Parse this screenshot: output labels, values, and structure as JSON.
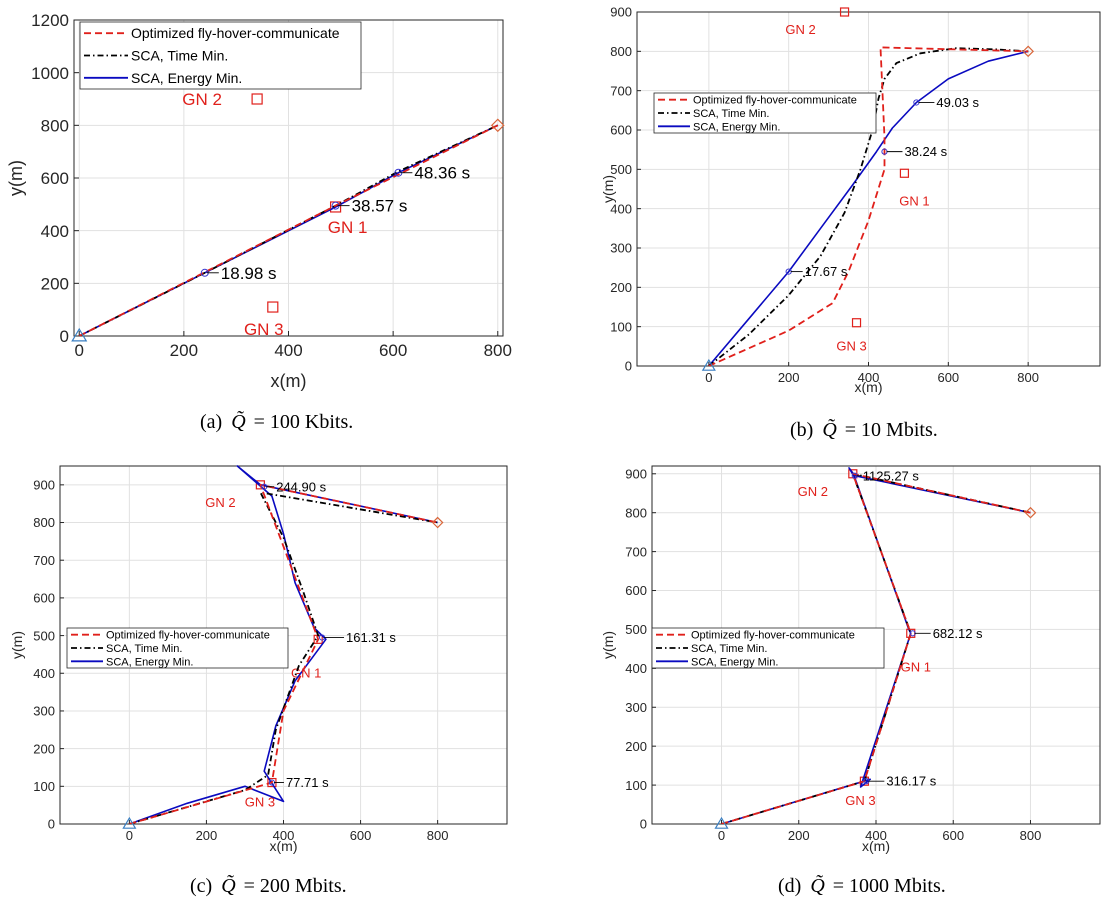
{
  "chart_data": [
    {
      "type": "line",
      "caption_prefix": "(a)",
      "caption_value": "= 100 Kbits.",
      "xlabel": "x(m)",
      "ylabel": "y(m)",
      "xlim": [
        -10,
        810
      ],
      "ylim": [
        0,
        1200
      ],
      "xticks": [
        0,
        200,
        400,
        600,
        800
      ],
      "yticks": [
        0,
        200,
        400,
        600,
        800,
        1000,
        1200
      ],
      "grid": true,
      "legend": {
        "placement": "top-left",
        "entries": [
          "Optimized fly-hover-communicate",
          "SCA, Time Min.",
          "SCA, Energy Min."
        ]
      },
      "series": [
        {
          "name": "Optimized fly-hover-communicate",
          "style": "dashed",
          "color": "#e0201b",
          "x": [
            0,
            490,
            800
          ],
          "y": [
            0,
            495,
            800
          ]
        },
        {
          "name": "SCA, Time Min.",
          "style": "dashdot",
          "color": "#000000",
          "x": [
            0,
            240,
            490,
            610,
            800
          ],
          "y": [
            0,
            240,
            495,
            625,
            800
          ]
        },
        {
          "name": "SCA, Energy Min.",
          "style": "solid",
          "color": "#0a0ac0",
          "x": [
            0,
            240,
            490,
            610,
            800
          ],
          "y": [
            0,
            240,
            490,
            620,
            800
          ]
        }
      ],
      "ground_nodes": [
        {
          "label": "GN 1",
          "x": 490,
          "y": 490
        },
        {
          "label": "GN 2",
          "x": 340,
          "y": 900
        },
        {
          "label": "GN 3",
          "x": 370,
          "y": 110
        }
      ],
      "start": {
        "x": 0,
        "y": 0
      },
      "end": {
        "x": 800,
        "y": 800
      },
      "annotations": [
        {
          "text": "18.98 s",
          "x": 240,
          "y": 240
        },
        {
          "text": "38.57 s",
          "x": 490,
          "y": 495
        },
        {
          "text": "48.36 s",
          "x": 610,
          "y": 620
        }
      ]
    },
    {
      "type": "line",
      "caption_prefix": "(b)",
      "caption_value": "= 10 Mbits.",
      "xlabel": "x(m)",
      "ylabel": "y(m)",
      "xlim": [
        -180,
        980
      ],
      "ylim": [
        0,
        900
      ],
      "xticks": [
        0,
        200,
        400,
        600,
        800
      ],
      "yticks": [
        0,
        100,
        200,
        300,
        400,
        500,
        600,
        700,
        800,
        900
      ],
      "grid": true,
      "legend": {
        "placement": "top-left",
        "entries": [
          "Optimized fly-hover-communicate",
          "SCA, Time Min.",
          "SCA, Energy Min."
        ]
      },
      "series": [
        {
          "name": "Optimized fly-hover-communicate",
          "style": "dashed",
          "color": "#e0201b",
          "x": [
            0,
            200,
            310,
            350,
            400,
            440,
            440,
            430,
            800
          ],
          "y": [
            0,
            90,
            160,
            240,
            370,
            500,
            580,
            810,
            800
          ]
        },
        {
          "name": "SCA, Time Min.",
          "style": "dashdot",
          "color": "#000000",
          "x": [
            0,
            100,
            200,
            280,
            340,
            380,
            410,
            425,
            440,
            470,
            530,
            620,
            720,
            800
          ],
          "y": [
            0,
            80,
            180,
            280,
            390,
            500,
            600,
            680,
            730,
            770,
            795,
            808,
            805,
            800
          ]
        },
        {
          "name": "SCA, Energy Min.",
          "style": "solid",
          "color": "#0a0ac0",
          "x": [
            0,
            100,
            200,
            280,
            360,
            420,
            460,
            520,
            600,
            700,
            800
          ],
          "y": [
            0,
            120,
            240,
            350,
            460,
            545,
            605,
            670,
            730,
            775,
            800
          ]
        }
      ],
      "ground_nodes": [
        {
          "label": "GN 1",
          "x": 490,
          "y": 490
        },
        {
          "label": "GN 2",
          "x": 340,
          "y": 900
        },
        {
          "label": "GN 3",
          "x": 370,
          "y": 110
        }
      ],
      "start": {
        "x": 0,
        "y": 0
      },
      "end": {
        "x": 800,
        "y": 800
      },
      "annotations": [
        {
          "text": "17.67 s",
          "x": 200,
          "y": 240
        },
        {
          "text": "38.24 s",
          "x": 440,
          "y": 545
        },
        {
          "text": "49.03 s",
          "x": 520,
          "y": 670
        }
      ]
    },
    {
      "type": "line",
      "caption_prefix": "(c)",
      "caption_value": "= 200 Mbits.",
      "xlabel": "x(m)",
      "ylabel": "y(m)",
      "xlim": [
        -180,
        980
      ],
      "ylim": [
        0,
        950
      ],
      "xticks": [
        0,
        200,
        400,
        600,
        800
      ],
      "yticks": [
        0,
        100,
        200,
        300,
        400,
        500,
        600,
        700,
        800,
        900
      ],
      "grid": true,
      "legend": {
        "placement": "middle-left",
        "entries": [
          "Optimized fly-hover-communicate",
          "SCA, Time Min.",
          "SCA, Energy Min."
        ]
      },
      "series": [
        {
          "name": "Optimized fly-hover-communicate",
          "style": "dashed",
          "color": "#e0201b",
          "x": [
            0,
            370,
            400,
            490,
            340,
            800
          ],
          "y": [
            0,
            110,
            300,
            490,
            900,
            800
          ]
        },
        {
          "name": "SCA, Time Min.",
          "style": "dashdot",
          "color": "#000000",
          "x": [
            0,
            150,
            300,
            360,
            380,
            440,
            490,
            450,
            400,
            340,
            800
          ],
          "y": [
            0,
            45,
            90,
            130,
            250,
            420,
            500,
            620,
            760,
            880,
            800
          ]
        },
        {
          "name": "SCA, Energy Min.",
          "style": "solid",
          "color": "#0a0ac0",
          "x": [
            0,
            150,
            300,
            400,
            350,
            380,
            430,
            510,
            480,
            430,
            400,
            370,
            280,
            340,
            800
          ],
          "y": [
            0,
            55,
            100,
            60,
            140,
            260,
            380,
            490,
            520,
            640,
            770,
            870,
            950,
            900,
            800
          ]
        }
      ],
      "ground_nodes": [
        {
          "label": "GN 1",
          "x": 490,
          "y": 490
        },
        {
          "label": "GN 2",
          "x": 340,
          "y": 900
        },
        {
          "label": "GN 3",
          "x": 370,
          "y": 110
        }
      ],
      "start": {
        "x": 0,
        "y": 0
      },
      "end": {
        "x": 800,
        "y": 800
      },
      "annotations": [
        {
          "text": "77.71 s",
          "x": 370,
          "y": 110
        },
        {
          "text": "161.31 s",
          "x": 500,
          "y": 495
        },
        {
          "text": "244.90 s",
          "x": 350,
          "y": 895
        }
      ]
    },
    {
      "type": "line",
      "caption_prefix": "(d)",
      "caption_value": "= 1000 Mbits.",
      "xlabel": "x(m)",
      "ylabel": "y(m)",
      "xlim": [
        -180,
        980
      ],
      "ylim": [
        0,
        920
      ],
      "xticks": [
        0,
        200,
        400,
        600,
        800
      ],
      "yticks": [
        0,
        100,
        200,
        300,
        400,
        500,
        600,
        700,
        800,
        900
      ],
      "grid": true,
      "legend": {
        "placement": "middle-left",
        "entries": [
          "Optimized fly-hover-communicate",
          "SCA, Time Min.",
          "SCA, Energy Min."
        ]
      },
      "series": [
        {
          "name": "Optimized fly-hover-communicate",
          "style": "dashed",
          "color": "#e0201b",
          "x": [
            0,
            370,
            490,
            340,
            800
          ],
          "y": [
            0,
            110,
            490,
            900,
            800
          ]
        },
        {
          "name": "SCA, Time Min.",
          "style": "dashdot",
          "color": "#000000",
          "x": [
            0,
            370,
            490,
            340,
            800
          ],
          "y": [
            0,
            110,
            490,
            900,
            800
          ]
        },
        {
          "name": "SCA, Energy Min.",
          "style": "solid",
          "color": "#0a0ac0",
          "x": [
            0,
            385,
            360,
            490,
            485,
            345,
            330,
            345,
            800
          ],
          "y": [
            0,
            115,
            95,
            490,
            500,
            890,
            915,
            895,
            800
          ]
        }
      ],
      "ground_nodes": [
        {
          "label": "GN 1",
          "x": 490,
          "y": 490
        },
        {
          "label": "GN 2",
          "x": 340,
          "y": 900
        },
        {
          "label": "GN 3",
          "x": 370,
          "y": 110
        }
      ],
      "start": {
        "x": 0,
        "y": 0
      },
      "end": {
        "x": 800,
        "y": 800
      },
      "annotations": [
        {
          "text": "316.17 s",
          "x": 375,
          "y": 110
        },
        {
          "text": "682.12 s",
          "x": 495,
          "y": 490
        },
        {
          "text": "1125.27 s",
          "x": 345,
          "y": 895
        }
      ]
    }
  ],
  "caption_symbol": "Q̃"
}
